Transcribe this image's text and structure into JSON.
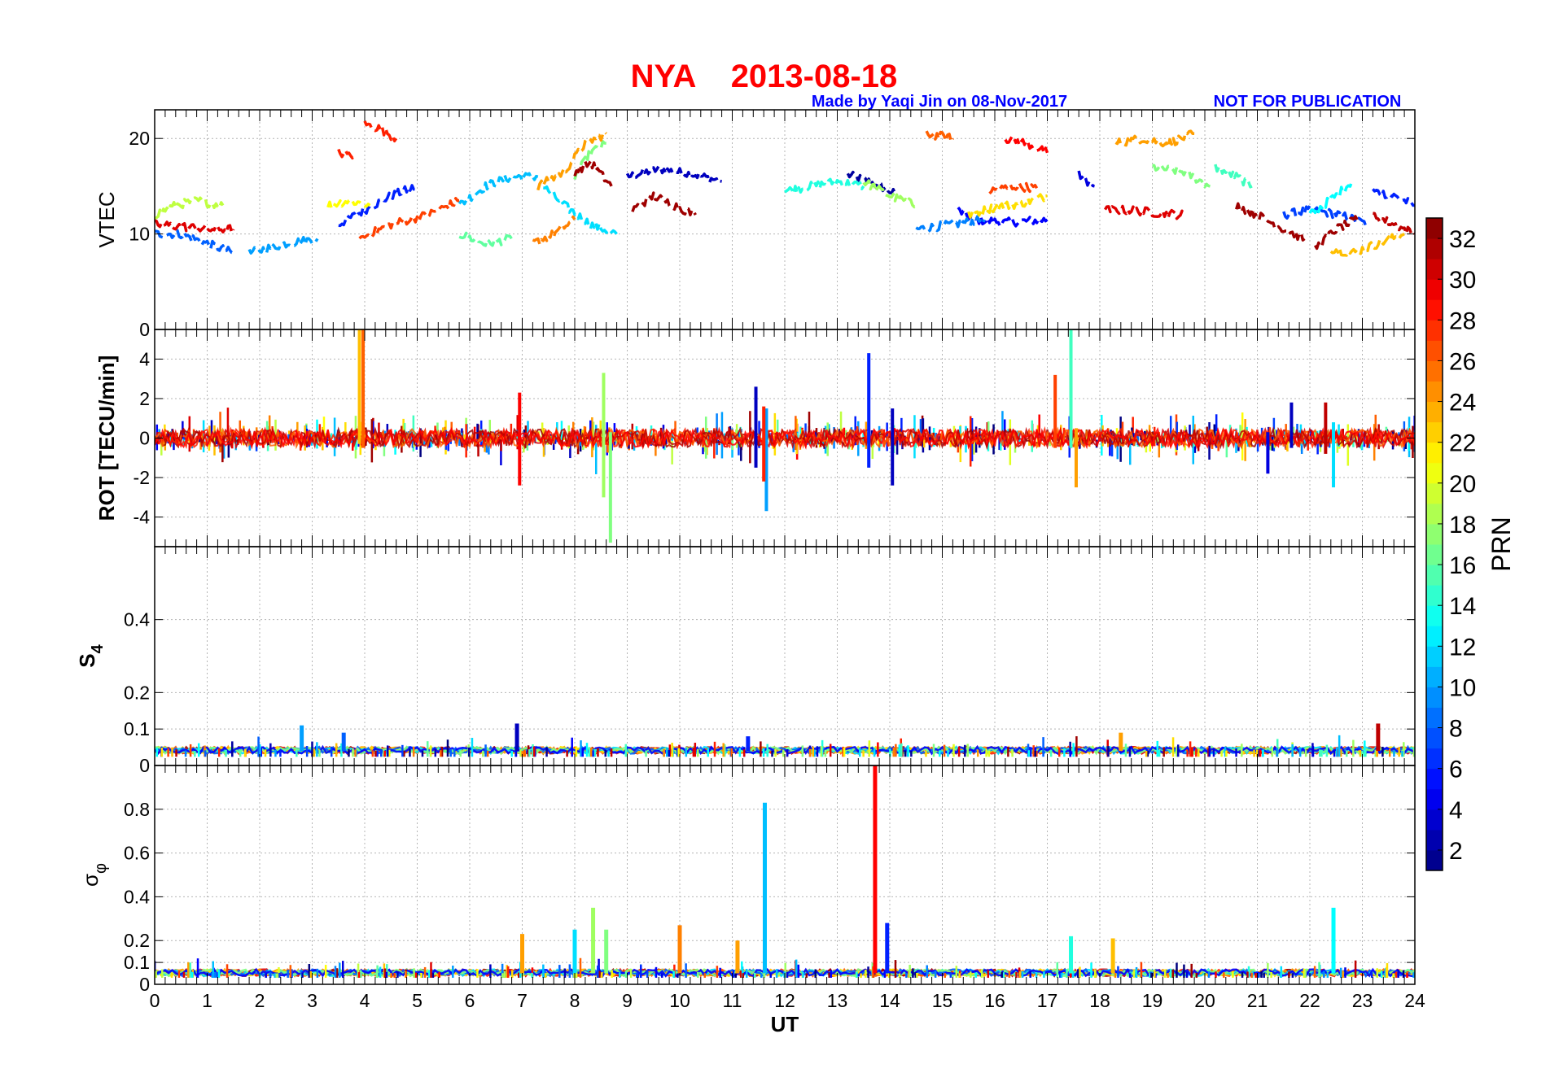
{
  "title": {
    "station": "NYA",
    "date": "2013-08-18"
  },
  "credit": {
    "made_by": "Made by Yaqi Jin on 08-Nov-2017",
    "notice": "NOT FOR PUBLICATION"
  },
  "colors": {
    "title": "#ff0000",
    "credit": "#0000ff",
    "grid": "#b4b4b4",
    "frame": "#000000"
  },
  "chart_data": {
    "type": "scatter",
    "x_axis": {
      "label": "UT",
      "range": [
        0,
        24
      ],
      "ticks": [
        0,
        1,
        2,
        3,
        4,
        5,
        6,
        7,
        8,
        9,
        10,
        11,
        12,
        13,
        14,
        15,
        16,
        17,
        18,
        19,
        20,
        21,
        22,
        23,
        24
      ]
    },
    "colorbar": {
      "label": "PRN",
      "range": [
        1,
        33
      ],
      "ticks": [
        2,
        4,
        6,
        8,
        10,
        12,
        14,
        16,
        18,
        20,
        22,
        24,
        26,
        28,
        30,
        32
      ],
      "colormap": "jet"
    },
    "panels": [
      {
        "id": "vtec",
        "ylabel": "VTEC",
        "ylim": [
          0,
          23
        ],
        "yticks": [
          0,
          10,
          20
        ],
        "grid": true,
        "trends": [
          {
            "prn": 2,
            "points": [
              [
                13.2,
                16.2
              ],
              [
                13.6,
                15.5
              ],
              [
                13.9,
                14.8
              ],
              [
                14.1,
                14.2
              ]
            ]
          },
          {
            "prn": 3,
            "points": [
              [
                9,
                16
              ],
              [
                9.6,
                16.8
              ],
              [
                10.3,
                16.2
              ],
              [
                10.8,
                15.5
              ]
            ]
          },
          {
            "prn": 4,
            "points": [
              [
                17.6,
                16.2
              ],
              [
                17.9,
                15
              ]
            ]
          },
          {
            "prn": 5,
            "points": [
              [
                15.3,
                12.5
              ],
              [
                15.6,
                11.5
              ],
              [
                16.2,
                11.2
              ],
              [
                17,
                11.5
              ]
            ]
          },
          {
            "prn": 6,
            "points": [
              [
                3.5,
                11
              ],
              [
                4,
                12.5
              ],
              [
                4.5,
                14
              ],
              [
                5,
                15
              ]
            ]
          },
          {
            "prn": 6,
            "points": [
              [
                23.2,
                14.5
              ],
              [
                23.6,
                14
              ],
              [
                24,
                13
              ]
            ]
          },
          {
            "prn": 7,
            "points": [
              [
                21.5,
                12
              ],
              [
                22,
                12.5
              ],
              [
                22.6,
                12
              ],
              [
                23.1,
                11
              ]
            ]
          },
          {
            "prn": 8,
            "points": [
              [
                0,
                10
              ],
              [
                0.5,
                10
              ],
              [
                1,
                9
              ],
              [
                1.5,
                8
              ]
            ]
          },
          {
            "prn": 9,
            "points": [
              [
                14.5,
                10.5
              ],
              [
                15.2,
                11
              ],
              [
                15.8,
                11.5
              ]
            ]
          },
          {
            "prn": 10,
            "points": [
              [
                1.8,
                8
              ],
              [
                2.5,
                9
              ],
              [
                3.1,
                9.5
              ]
            ]
          },
          {
            "prn": 11,
            "points": [
              [
                5.8,
                13
              ],
              [
                6.3,
                15
              ],
              [
                6.8,
                16
              ],
              [
                7.3,
                16
              ]
            ]
          },
          {
            "prn": 12,
            "points": [
              [
                7.4,
                15
              ],
              [
                7.8,
                13
              ],
              [
                8.3,
                11
              ],
              [
                8.8,
                10
              ]
            ]
          },
          {
            "prn": 13,
            "points": [
              [
                22,
                12
              ],
              [
                22.5,
                14
              ],
              [
                22.8,
                15.5
              ]
            ]
          },
          {
            "prn": 14,
            "points": [
              [
                12,
                14.5
              ],
              [
                12.5,
                15
              ],
              [
                13,
                15.5
              ],
              [
                13.5,
                15
              ]
            ]
          },
          {
            "prn": 15,
            "points": [
              [
                20.2,
                17
              ],
              [
                20.6,
                16
              ],
              [
                20.9,
                15
              ]
            ]
          },
          {
            "prn": 16,
            "points": [
              [
                5.8,
                10
              ],
              [
                6.3,
                9
              ],
              [
                6.8,
                9.5
              ]
            ]
          },
          {
            "prn": 17,
            "points": [
              [
                8,
                16
              ],
              [
                8.3,
                18.5
              ],
              [
                8.6,
                19.5
              ]
            ]
          },
          {
            "prn": 17,
            "points": [
              [
                19,
                17
              ],
              [
                19.6,
                16.5
              ],
              [
                20.1,
                15
              ]
            ]
          },
          {
            "prn": 18,
            "points": [
              [
                13.5,
                15.5
              ],
              [
                14,
                14
              ],
              [
                14.5,
                13
              ]
            ]
          },
          {
            "prn": 19,
            "points": [
              [
                0,
                12
              ],
              [
                0.4,
                13
              ],
              [
                0.8,
                13.5
              ],
              [
                1.3,
                13
              ]
            ]
          },
          {
            "prn": 21,
            "points": [
              [
                3.3,
                13
              ],
              [
                3.7,
                13.5
              ],
              [
                4.1,
                13
              ]
            ]
          },
          {
            "prn": 22,
            "points": [
              [
                15.5,
                12
              ],
              [
                16,
                12.8
              ],
              [
                16.5,
                13.2
              ],
              [
                17,
                14
              ]
            ]
          },
          {
            "prn": 23,
            "points": [
              [
                22.4,
                8.5
              ],
              [
                22.8,
                8
              ],
              [
                23.3,
                9
              ],
              [
                23.8,
                10
              ]
            ]
          },
          {
            "prn": 24,
            "points": [
              [
                7.3,
                15
              ],
              [
                7.8,
                16.5
              ],
              [
                8.2,
                19.5
              ],
              [
                8.6,
                20.5
              ]
            ]
          },
          {
            "prn": 24,
            "points": [
              [
                18.3,
                19.5
              ],
              [
                18.8,
                20
              ],
              [
                19.3,
                19.5
              ],
              [
                19.8,
                20.5
              ]
            ]
          },
          {
            "prn": 25,
            "points": [
              [
                7.2,
                9
              ],
              [
                7.6,
                10
              ],
              [
                8,
                11.5
              ]
            ]
          },
          {
            "prn": 26,
            "points": [
              [
                14.7,
                20.5
              ],
              [
                15.2,
                20
              ]
            ]
          },
          {
            "prn": 27,
            "points": [
              [
                3.9,
                9.5
              ],
              [
                4.5,
                11
              ],
              [
                5.2,
                12
              ],
              [
                5.8,
                13.5
              ]
            ]
          },
          {
            "prn": 27,
            "points": [
              [
                15.9,
                14.5
              ],
              [
                16.4,
                15
              ],
              [
                16.8,
                14.8
              ]
            ]
          },
          {
            "prn": 28,
            "points": [
              [
                3.5,
                18.5
              ],
              [
                3.8,
                18.2
              ]
            ]
          },
          {
            "prn": 28,
            "points": [
              [
                4,
                21.5
              ],
              [
                4.3,
                21
              ],
              [
                4.6,
                20
              ]
            ]
          },
          {
            "prn": 29,
            "points": [
              [
                16.2,
                20
              ],
              [
                16.6,
                19.5
              ],
              [
                17,
                18.5
              ]
            ]
          },
          {
            "prn": 30,
            "points": [
              [
                0,
                11
              ],
              [
                0.5,
                10.8
              ],
              [
                1,
                10.5
              ],
              [
                1.5,
                10.5
              ]
            ]
          },
          {
            "prn": 30,
            "points": [
              [
                18.1,
                12.5
              ],
              [
                18.6,
                12.5
              ],
              [
                19.1,
                12.2
              ],
              [
                19.6,
                12
              ]
            ]
          },
          {
            "prn": 31,
            "points": [
              [
                23.2,
                12
              ],
              [
                23.6,
                11
              ],
              [
                24,
                10
              ]
            ]
          },
          {
            "prn": 32,
            "points": [
              [
                8,
                16.5
              ],
              [
                8.3,
                17.5
              ],
              [
                8.7,
                15
              ]
            ]
          },
          {
            "prn": 32,
            "points": [
              [
                9.1,
                12.5
              ],
              [
                9.5,
                14
              ],
              [
                9.9,
                13
              ],
              [
                10.3,
                12
              ]
            ]
          },
          {
            "prn": 32,
            "points": [
              [
                20.6,
                13
              ],
              [
                21,
                12
              ],
              [
                21.5,
                10.5
              ],
              [
                21.9,
                9.5
              ]
            ]
          },
          {
            "prn": 32,
            "points": [
              [
                22.1,
                8.5
              ],
              [
                22.5,
                10.5
              ],
              [
                22.9,
                11.5
              ]
            ]
          }
        ]
      },
      {
        "id": "rot",
        "ylabel": "ROT [TECU/min]",
        "ylim": [
          -5.5,
          5.5
        ],
        "yticks": [
          -4,
          -2,
          0,
          2,
          4
        ],
        "grid": true,
        "spikes": [
          {
            "x": 3.9,
            "low": -0.3,
            "high": 5.5,
            "prn": 23
          },
          {
            "x": 3.97,
            "low": -0.5,
            "high": 5.5,
            "prn": 26
          },
          {
            "x": 8.68,
            "low": -5.3,
            "high": 0.3,
            "prn": 17
          },
          {
            "x": 8.55,
            "low": -3,
            "high": 3.3,
            "prn": 18
          },
          {
            "x": 11.65,
            "low": -3.7,
            "high": 1.5,
            "prn": 10
          },
          {
            "x": 11.45,
            "low": -1.5,
            "high": 2.6,
            "prn": 3
          },
          {
            "x": 13.6,
            "low": -1.5,
            "high": 4.3,
            "prn": 6
          },
          {
            "x": 14.05,
            "low": -2.4,
            "high": 1.5,
            "prn": 3
          },
          {
            "x": 17.45,
            "low": -0.5,
            "high": 5.5,
            "prn": 15
          },
          {
            "x": 17.15,
            "low": -0.5,
            "high": 3.2,
            "prn": 27
          },
          {
            "x": 17.55,
            "low": -2.5,
            "high": 0.5,
            "prn": 24
          },
          {
            "x": 22.45,
            "low": -2.5,
            "high": 0.8,
            "prn": 12
          },
          {
            "x": 21.65,
            "low": -0.5,
            "high": 1.8,
            "prn": 3
          },
          {
            "x": 22.3,
            "low": -0.8,
            "high": 1.8,
            "prn": 31
          },
          {
            "x": 6.95,
            "low": -2.4,
            "high": 2.3,
            "prn": 29
          },
          {
            "x": 11.6,
            "low": -2.2,
            "high": 1.6,
            "prn": 28
          },
          {
            "x": 21.2,
            "low": -1.8,
            "high": 0.3,
            "prn": 4
          }
        ]
      },
      {
        "id": "s4",
        "ylabel": "S4",
        "ylim": [
          0,
          0.6
        ],
        "yticks": [
          0,
          0.1,
          0.2,
          0.4
        ],
        "grid": true,
        "baseline": 0.04,
        "spikes": [
          {
            "x": 2.8,
            "value": 0.11,
            "prn": 10
          },
          {
            "x": 6.9,
            "value": 0.115,
            "prn": 3
          },
          {
            "x": 11.3,
            "value": 0.08,
            "prn": 6
          },
          {
            "x": 23.3,
            "value": 0.115,
            "prn": 31
          },
          {
            "x": 3.6,
            "value": 0.09,
            "prn": 8
          },
          {
            "x": 18.4,
            "value": 0.09,
            "prn": 24
          }
        ]
      },
      {
        "id": "sigma_phi",
        "ylabel": "σφ",
        "ylim": [
          0,
          1
        ],
        "yticks": [
          0,
          0.1,
          0.2,
          0.4,
          0.6,
          0.8
        ],
        "grid": true,
        "baseline": 0.05,
        "spikes": [
          {
            "x": 11.62,
            "value": 0.83,
            "prn": 11
          },
          {
            "x": 13.72,
            "value": 1.0,
            "prn": 29
          },
          {
            "x": 8.35,
            "value": 0.35,
            "prn": 18
          },
          {
            "x": 22.45,
            "value": 0.35,
            "prn": 13
          },
          {
            "x": 7.0,
            "value": 0.23,
            "prn": 24
          },
          {
            "x": 10.0,
            "value": 0.27,
            "prn": 25
          },
          {
            "x": 13.95,
            "value": 0.28,
            "prn": 6
          },
          {
            "x": 17.45,
            "value": 0.22,
            "prn": 14
          },
          {
            "x": 18.25,
            "value": 0.21,
            "prn": 23
          },
          {
            "x": 8.0,
            "value": 0.25,
            "prn": 12
          },
          {
            "x": 8.6,
            "value": 0.25,
            "prn": 17
          },
          {
            "x": 11.1,
            "value": 0.2,
            "prn": 24
          }
        ]
      }
    ]
  }
}
